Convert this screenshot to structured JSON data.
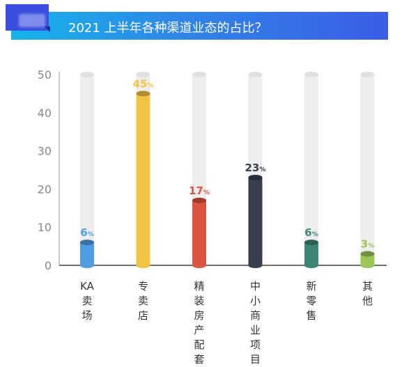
{
  "header": {
    "title": "2021 上半年各种渠道业态的占比？"
  },
  "chart_data": {
    "type": "bar",
    "title": "2021 上半年各种渠道业态的占比？",
    "categories": [
      "KA卖场",
      "专卖店",
      "精装房产配套",
      "中小商业项目",
      "新零售",
      "其他"
    ],
    "values": [
      6,
      45,
      17,
      23,
      6,
      3
    ],
    "value_suffix": "%",
    "colors": [
      "#4f9ee4",
      "#f1c443",
      "#dc5540",
      "#363f4e",
      "#3e8676",
      "#9cc656"
    ],
    "track_color": "#ededed",
    "yticks": [
      0,
      10,
      20,
      30,
      40,
      50
    ],
    "ylim": [
      0,
      50
    ],
    "grid": false,
    "xlabel": "",
    "ylabel": ""
  }
}
